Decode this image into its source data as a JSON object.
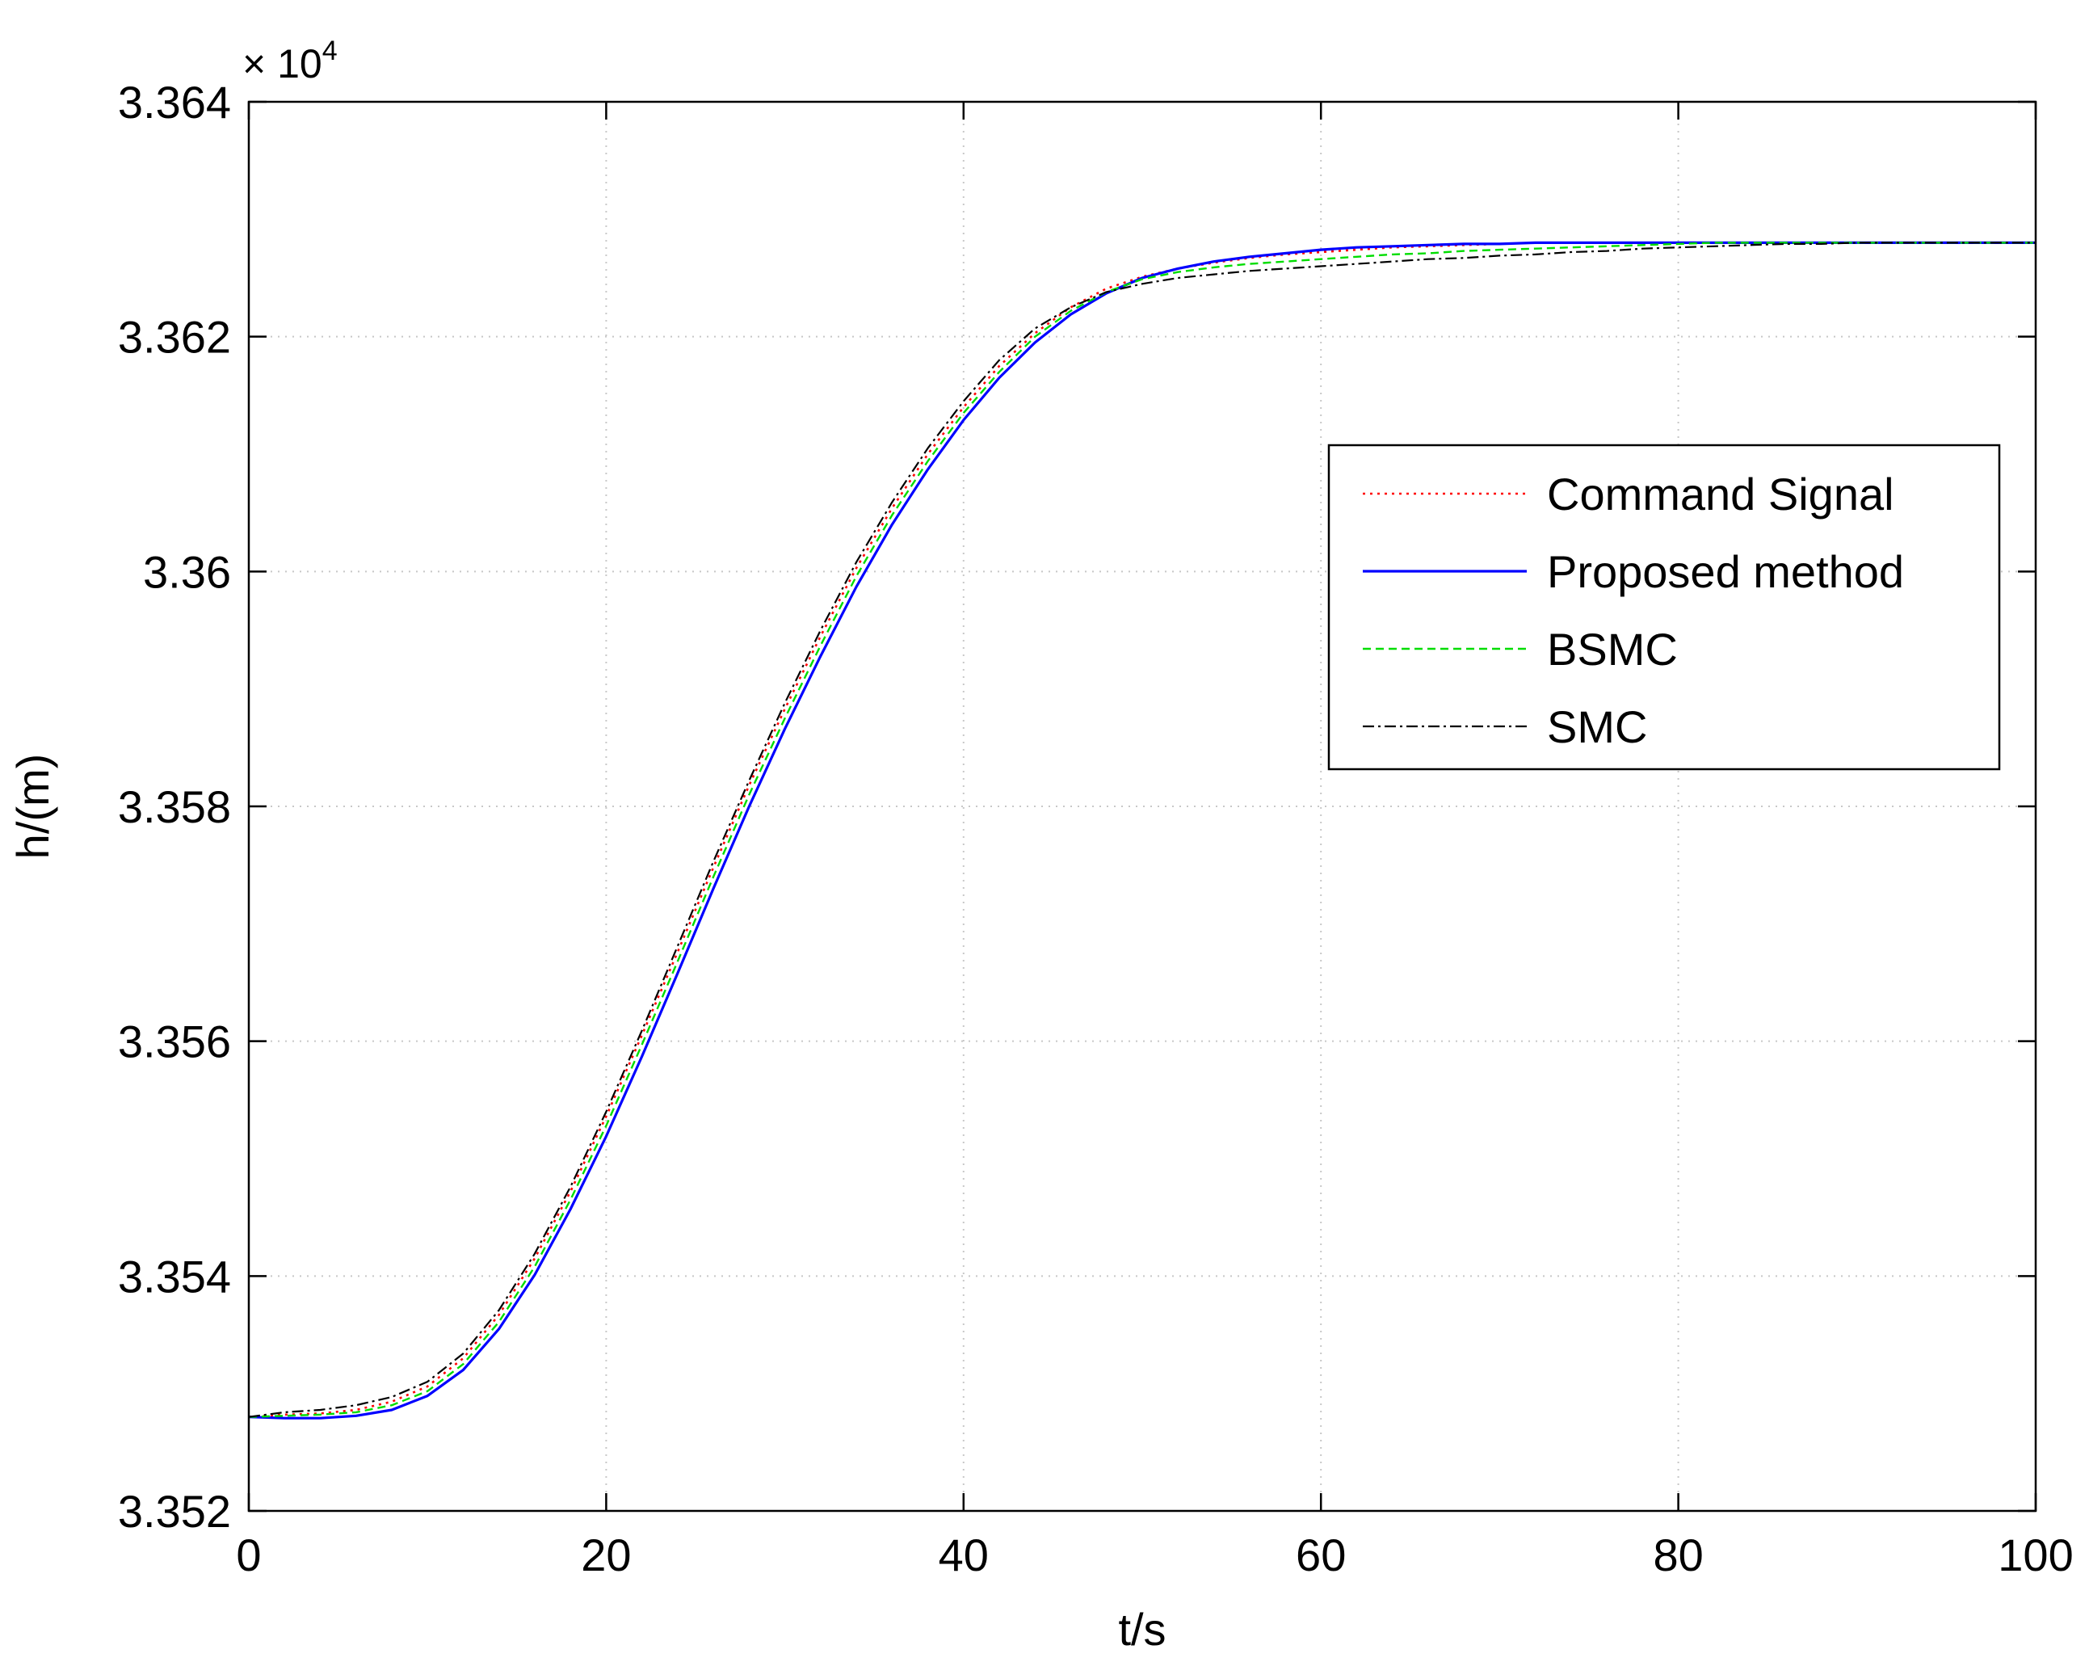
{
  "chart_data": {
    "type": "line",
    "title": "",
    "xlabel": "t/s",
    "ylabel": "h/(m)",
    "y_exponent_label": "× 10",
    "y_exponent_power": "4",
    "xlim": [
      0,
      100
    ],
    "ylim": [
      3.352,
      3.364
    ],
    "xticks": [
      0,
      20,
      40,
      60,
      80,
      100
    ],
    "xtick_labels": [
      "0",
      "20",
      "40",
      "60",
      "80",
      "100"
    ],
    "yticks": [
      3.352,
      3.354,
      3.356,
      3.358,
      3.36,
      3.362,
      3.364
    ],
    "ytick_labels": [
      "3.352",
      "3.354",
      "3.356",
      "3.358",
      "3.36",
      "3.362",
      "3.364"
    ],
    "grid": true,
    "legend_position": "top-right",
    "x": [
      0,
      2,
      4,
      6,
      8,
      10,
      12,
      14,
      16,
      18,
      20,
      22,
      24,
      26,
      28,
      30,
      32,
      34,
      36,
      38,
      40,
      42,
      44,
      46,
      48,
      50,
      52,
      54,
      56,
      58,
      60,
      62,
      64,
      66,
      68,
      70,
      72,
      74,
      76,
      78,
      80,
      82,
      84,
      86,
      88,
      90,
      92,
      94,
      96,
      98,
      100
    ],
    "series": [
      {
        "name": "Command Signal",
        "color": "#ff0000",
        "style": "dotted",
        "values": [
          3.3528,
          3.35282,
          3.35283,
          3.35286,
          3.35293,
          3.35306,
          3.3533,
          3.35367,
          3.35415,
          3.35472,
          3.35536,
          3.35605,
          3.35676,
          3.35748,
          3.35818,
          3.35883,
          3.35945,
          3.36003,
          3.36054,
          3.361,
          3.3614,
          3.36175,
          3.36203,
          3.36225,
          3.36241,
          3.36251,
          3.36258,
          3.36263,
          3.36267,
          3.3627,
          3.36272,
          3.36274,
          3.36276,
          3.36277,
          3.36278,
          3.36279,
          3.3628,
          3.3628,
          3.3628,
          3.3628,
          3.3628,
          3.3628,
          3.3628,
          3.3628,
          3.3628,
          3.3628,
          3.3628,
          3.3628,
          3.3628,
          3.3628,
          3.3628
        ]
      },
      {
        "name": "Proposed method",
        "color": "#0000ff",
        "style": "solid",
        "values": [
          3.3528,
          3.35279,
          3.35279,
          3.35281,
          3.35286,
          3.35298,
          3.3532,
          3.35355,
          3.35401,
          3.35457,
          3.35519,
          3.35587,
          3.35658,
          3.3573,
          3.358,
          3.35866,
          3.35928,
          3.35987,
          3.3604,
          3.36087,
          3.36129,
          3.36165,
          3.36195,
          3.36219,
          3.36237,
          3.3625,
          3.36258,
          3.36264,
          3.36268,
          3.36271,
          3.36274,
          3.36276,
          3.36277,
          3.36278,
          3.36279,
          3.36279,
          3.3628,
          3.3628,
          3.3628,
          3.3628,
          3.3628,
          3.3628,
          3.3628,
          3.3628,
          3.3628,
          3.3628,
          3.3628,
          3.3628,
          3.3628,
          3.3628,
          3.3628
        ]
      },
      {
        "name": "BSMC",
        "color": "#00dd00",
        "style": "dashed",
        "values": [
          3.3528,
          3.35281,
          3.35282,
          3.35284,
          3.3529,
          3.35302,
          3.35325,
          3.35361,
          3.35408,
          3.35465,
          3.35528,
          3.35597,
          3.35668,
          3.3574,
          3.3581,
          3.35875,
          3.35937,
          3.35996,
          3.36048,
          3.36094,
          3.36135,
          3.3617,
          3.362,
          3.36222,
          3.36238,
          3.36249,
          3.36255,
          3.36259,
          3.36262,
          3.36264,
          3.36266,
          3.36268,
          3.3627,
          3.36271,
          3.36273,
          3.36274,
          3.36275,
          3.36276,
          3.36277,
          3.36278,
          3.36279,
          3.3628,
          3.3628,
          3.3628,
          3.3628,
          3.3628,
          3.3628,
          3.3628,
          3.3628,
          3.3628,
          3.3628
        ]
      },
      {
        "name": "SMC",
        "color": "#000000",
        "style": "dashdot",
        "values": [
          3.3528,
          3.35284,
          3.35286,
          3.3529,
          3.35297,
          3.3531,
          3.35334,
          3.35371,
          3.35419,
          3.35476,
          3.3554,
          3.35609,
          3.35681,
          3.35753,
          3.35822,
          3.35888,
          3.3595,
          3.36008,
          3.36059,
          3.36105,
          3.36145,
          3.3618,
          3.36207,
          3.36225,
          3.36238,
          3.36245,
          3.3625,
          3.36253,
          3.36256,
          3.36258,
          3.3626,
          3.36262,
          3.36264,
          3.36266,
          3.36267,
          3.36269,
          3.3627,
          3.36272,
          3.36273,
          3.36275,
          3.36276,
          3.36277,
          3.36278,
          3.36279,
          3.36279,
          3.3628,
          3.3628,
          3.3628,
          3.3628,
          3.3628,
          3.3628
        ]
      }
    ]
  }
}
